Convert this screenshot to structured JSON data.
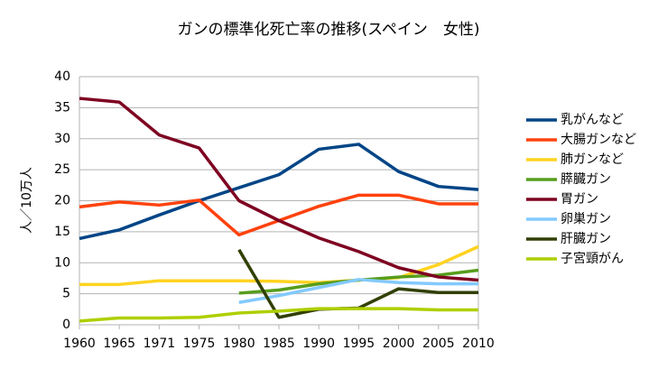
{
  "chart_data": {
    "type": "line",
    "title": "ガンの標準化死亡率の推移(スペイン　女性)",
    "y_label": "人／10万人",
    "categories": [
      "1960",
      "1965",
      "1971",
      "1975",
      "1980",
      "1985",
      "1990",
      "1995",
      "2000",
      "2005",
      "2010"
    ],
    "ylim": [
      0,
      40
    ],
    "yticks": [
      0,
      5,
      10,
      15,
      20,
      25,
      30,
      35,
      40
    ],
    "grid": true,
    "legend": "right",
    "series": [
      {
        "name": "乳がんなど",
        "color": "#004586",
        "values": [
          13.9,
          15.3,
          17.7,
          20,
          22.1,
          24.2,
          28.3,
          29.1,
          24.7,
          22.3,
          21.8
        ]
      },
      {
        "name": "大腸ガンなど",
        "color": "#ff420e",
        "values": [
          19,
          19.8,
          19.3,
          20.1,
          14.5,
          16.8,
          19.1,
          20.9,
          20.9,
          19.5,
          19.5
        ]
      },
      {
        "name": "肺ガンなど",
        "color": "#ffd320",
        "values": [
          6.5,
          6.5,
          7.1,
          7.1,
          7.1,
          7,
          6.8,
          7.2,
          7.6,
          9.7,
          12.6
        ]
      },
      {
        "name": "膵臓ガン",
        "color": "#579d1c",
        "values": [
          null,
          null,
          null,
          null,
          5.1,
          5.6,
          6.6,
          7.2,
          7.7,
          8,
          8.8
        ]
      },
      {
        "name": "胃ガン",
        "color": "#7e0021",
        "values": [
          36.5,
          35.9,
          30.6,
          28.5,
          20,
          16.8,
          14,
          11.8,
          9.2,
          7.7,
          7.2
        ]
      },
      {
        "name": "卵巣ガン",
        "color": "#83caff",
        "values": [
          null,
          null,
          null,
          null,
          3.6,
          4.7,
          6,
          7.3,
          6.8,
          6.6,
          6.6
        ]
      },
      {
        "name": "肝臓ガン",
        "color": "#314004",
        "values": [
          null,
          null,
          null,
          null,
          12.1,
          1.2,
          2.5,
          2.7,
          5.8,
          5.2,
          5.2
        ]
      },
      {
        "name": "子宮頸がん",
        "color": "#aecf00",
        "values": [
          0.6,
          1.1,
          1.1,
          1.2,
          1.9,
          2.2,
          2.6,
          2.6,
          2.6,
          2.4,
          2.4
        ]
      }
    ]
  }
}
